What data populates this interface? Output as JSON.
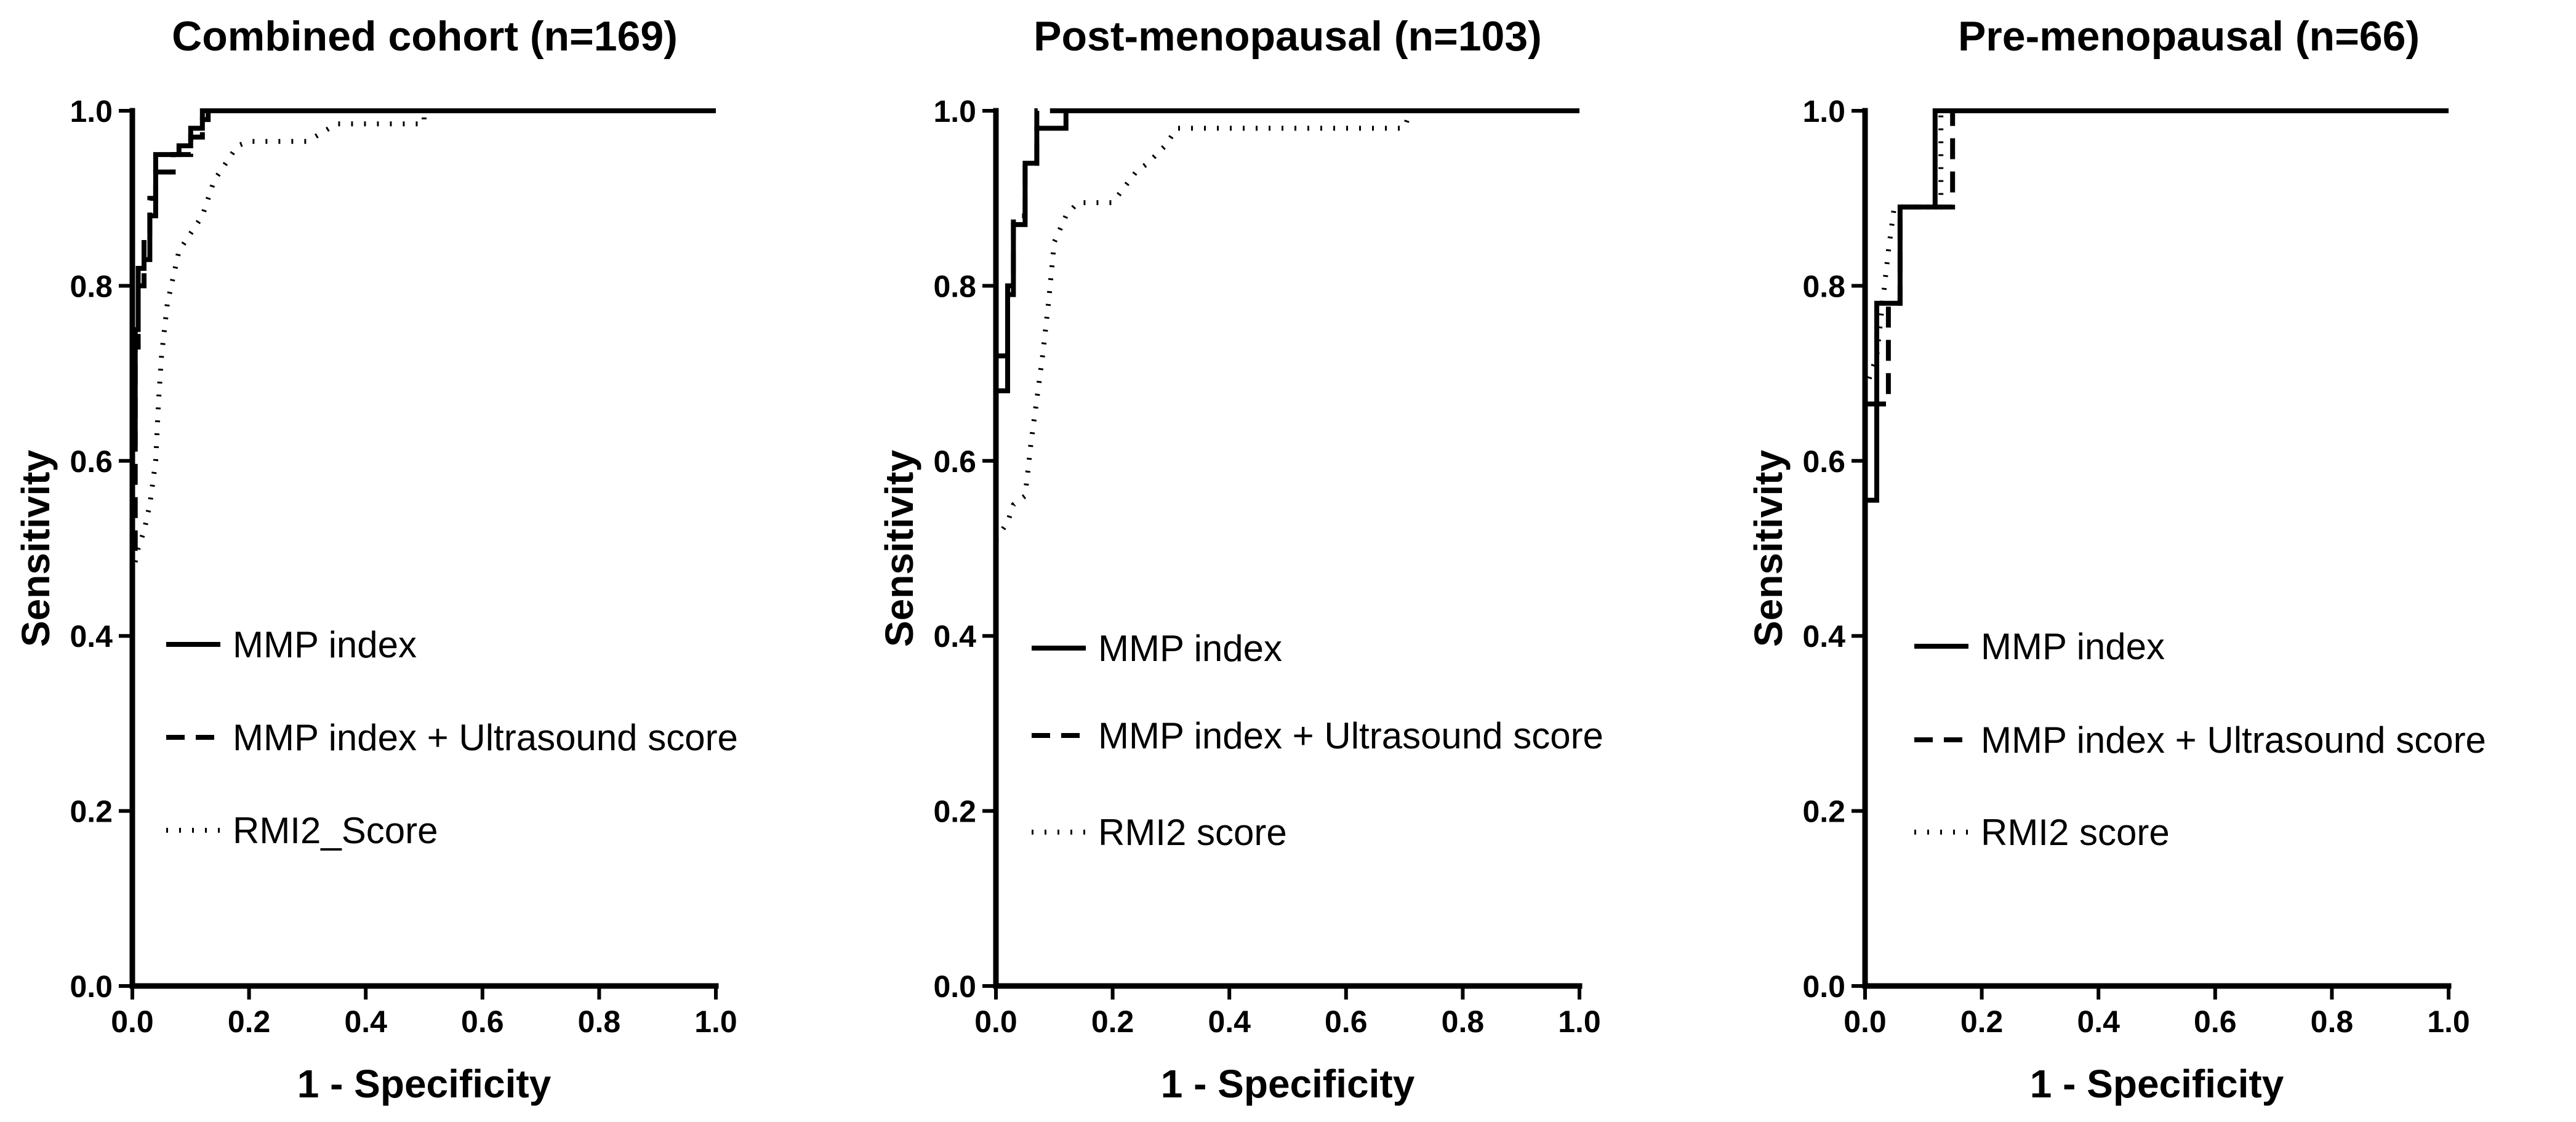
{
  "chart_data": [
    {
      "type": "line",
      "title": "Combined cohort (n=169)",
      "xlabel": "1 - Specificity",
      "ylabel": "Sensitivity",
      "xlim": [
        0,
        1
      ],
      "ylim": [
        0,
        1
      ],
      "xticks": [
        "0.0",
        "0.2",
        "0.4",
        "0.6",
        "0.8",
        "1.0"
      ],
      "yticks": [
        "0.0",
        "0.2",
        "0.4",
        "0.6",
        "0.8",
        "1.0"
      ],
      "legend_position": "center-left",
      "series": [
        {
          "name": "MMP index",
          "style": "solid",
          "points": [
            [
              0,
              0.44
            ],
            [
              0,
              0.62
            ],
            [
              0.005,
              0.62
            ],
            [
              0.005,
              0.75
            ],
            [
              0.01,
              0.75
            ],
            [
              0.01,
              0.82
            ],
            [
              0.02,
              0.82
            ],
            [
              0.02,
              0.83
            ],
            [
              0.03,
              0.83
            ],
            [
              0.03,
              0.88
            ],
            [
              0.04,
              0.88
            ],
            [
              0.04,
              0.95
            ],
            [
              0.08,
              0.95
            ],
            [
              0.08,
              0.96
            ],
            [
              0.1,
              0.96
            ],
            [
              0.1,
              0.98
            ],
            [
              0.12,
              0.98
            ],
            [
              0.12,
              0.99
            ],
            [
              0.13,
              0.99
            ],
            [
              0.13,
              1.0
            ],
            [
              1.0,
              1.0
            ]
          ]
        },
        {
          "name": "MMP index + Ultrasound score",
          "style": "dashed",
          "points": [
            [
              0,
              0.5
            ],
            [
              0.005,
              0.5
            ],
            [
              0.005,
              0.73
            ],
            [
              0.01,
              0.73
            ],
            [
              0.01,
              0.8
            ],
            [
              0.02,
              0.8
            ],
            [
              0.02,
              0.86
            ],
            [
              0.03,
              0.86
            ],
            [
              0.03,
              0.9
            ],
            [
              0.04,
              0.9
            ],
            [
              0.04,
              0.93
            ],
            [
              0.07,
              0.93
            ],
            [
              0.07,
              0.95
            ],
            [
              0.1,
              0.95
            ],
            [
              0.1,
              0.97
            ],
            [
              0.12,
              0.97
            ],
            [
              0.12,
              1.0
            ],
            [
              1.0,
              1.0
            ]
          ]
        },
        {
          "name": "RMI2_Score",
          "style": "dotted",
          "points": [
            [
              0,
              0.47
            ],
            [
              0.01,
              0.5
            ],
            [
              0.02,
              0.52
            ],
            [
              0.03,
              0.55
            ],
            [
              0.04,
              0.6
            ],
            [
              0.045,
              0.67
            ],
            [
              0.05,
              0.72
            ],
            [
              0.06,
              0.78
            ],
            [
              0.07,
              0.81
            ],
            [
              0.08,
              0.84
            ],
            [
              0.1,
              0.86
            ],
            [
              0.12,
              0.88
            ],
            [
              0.14,
              0.92
            ],
            [
              0.18,
              0.96
            ],
            [
              0.2,
              0.965
            ],
            [
              0.3,
              0.965
            ],
            [
              0.35,
              0.985
            ],
            [
              0.5,
              0.985
            ],
            [
              0.5,
              1.0
            ],
            [
              1.0,
              1.0
            ]
          ]
        }
      ]
    },
    {
      "type": "line",
      "title": "Post-menopausal (n=103)",
      "xlabel": "1 - Specificity",
      "ylabel": "Sensitivity",
      "xlim": [
        0,
        1
      ],
      "ylim": [
        0,
        1
      ],
      "xticks": [
        "0.0",
        "0.2",
        "0.4",
        "0.6",
        "0.8",
        "1.0"
      ],
      "yticks": [
        "0.0",
        "0.2",
        "0.4",
        "0.6",
        "0.8",
        "1.0"
      ],
      "legend_position": "center-left",
      "series": [
        {
          "name": "MMP index",
          "style": "solid",
          "points": [
            [
              0,
              0.68
            ],
            [
              0.02,
              0.68
            ],
            [
              0.02,
              0.79
            ],
            [
              0.03,
              0.79
            ],
            [
              0.03,
              0.87
            ],
            [
              0.05,
              0.87
            ],
            [
              0.05,
              0.94
            ],
            [
              0.07,
              0.94
            ],
            [
              0.07,
              0.98
            ],
            [
              0.12,
              0.98
            ],
            [
              0.12,
              1.0
            ],
            [
              1.0,
              1.0
            ]
          ]
        },
        {
          "name": "MMP index + Ultrasound score",
          "style": "dashed",
          "points": [
            [
              0,
              0.72
            ],
            [
              0.02,
              0.72
            ],
            [
              0.02,
              0.8
            ],
            [
              0.03,
              0.8
            ],
            [
              0.03,
              0.88
            ],
            [
              0.05,
              0.88
            ],
            [
              0.05,
              0.94
            ],
            [
              0.07,
              0.94
            ],
            [
              0.07,
              1.0
            ],
            [
              1.0,
              1.0
            ]
          ]
        },
        {
          "name": "RMI2 score",
          "style": "dotted",
          "points": [
            [
              0,
              0.51
            ],
            [
              0.02,
              0.53
            ],
            [
              0.03,
              0.55
            ],
            [
              0.05,
              0.56
            ],
            [
              0.06,
              0.62
            ],
            [
              0.08,
              0.72
            ],
            [
              0.09,
              0.78
            ],
            [
              0.1,
              0.85
            ],
            [
              0.12,
              0.88
            ],
            [
              0.14,
              0.895
            ],
            [
              0.2,
              0.895
            ],
            [
              0.24,
              0.93
            ],
            [
              0.26,
              0.94
            ],
            [
              0.29,
              0.96
            ],
            [
              0.31,
              0.98
            ],
            [
              0.7,
              0.98
            ],
            [
              0.71,
              1.0
            ],
            [
              1.0,
              1.0
            ]
          ]
        }
      ]
    },
    {
      "type": "line",
      "title": "Pre-menopausal (n=66)",
      "xlabel": "1 - Specificity",
      "ylabel": "Sensitivity",
      "xlim": [
        0,
        1
      ],
      "ylim": [
        0,
        1
      ],
      "xticks": [
        "0.0",
        "0.2",
        "0.4",
        "0.6",
        "0.8",
        "1.0"
      ],
      "yticks": [
        "0.0",
        "0.2",
        "0.4",
        "0.6",
        "0.8",
        "1.0"
      ],
      "legend_position": "center-left",
      "series": [
        {
          "name": "MMP index",
          "style": "solid",
          "points": [
            [
              0,
              0.555
            ],
            [
              0.02,
              0.555
            ],
            [
              0.02,
              0.78
            ],
            [
              0.06,
              0.78
            ],
            [
              0.06,
              0.89
            ],
            [
              0.12,
              0.89
            ],
            [
              0.12,
              1.0
            ],
            [
              1.0,
              1.0
            ]
          ]
        },
        {
          "name": "MMP index + Ultrasound score",
          "style": "dashed",
          "points": [
            [
              0,
              0.665
            ],
            [
              0.04,
              0.665
            ],
            [
              0.04,
              0.78
            ],
            [
              0.06,
              0.78
            ],
            [
              0.06,
              0.89
            ],
            [
              0.15,
              0.89
            ],
            [
              0.15,
              1.0
            ],
            [
              1.0,
              1.0
            ]
          ]
        },
        {
          "name": "RMI2 score",
          "style": "dotted",
          "points": [
            [
              0,
              0.68
            ],
            [
              0.02,
              0.72
            ],
            [
              0.03,
              0.78
            ],
            [
              0.04,
              0.84
            ],
            [
              0.05,
              0.89
            ],
            [
              0.13,
              0.89
            ],
            [
              0.13,
              1.0
            ],
            [
              1.0,
              1.0
            ]
          ]
        }
      ]
    }
  ]
}
